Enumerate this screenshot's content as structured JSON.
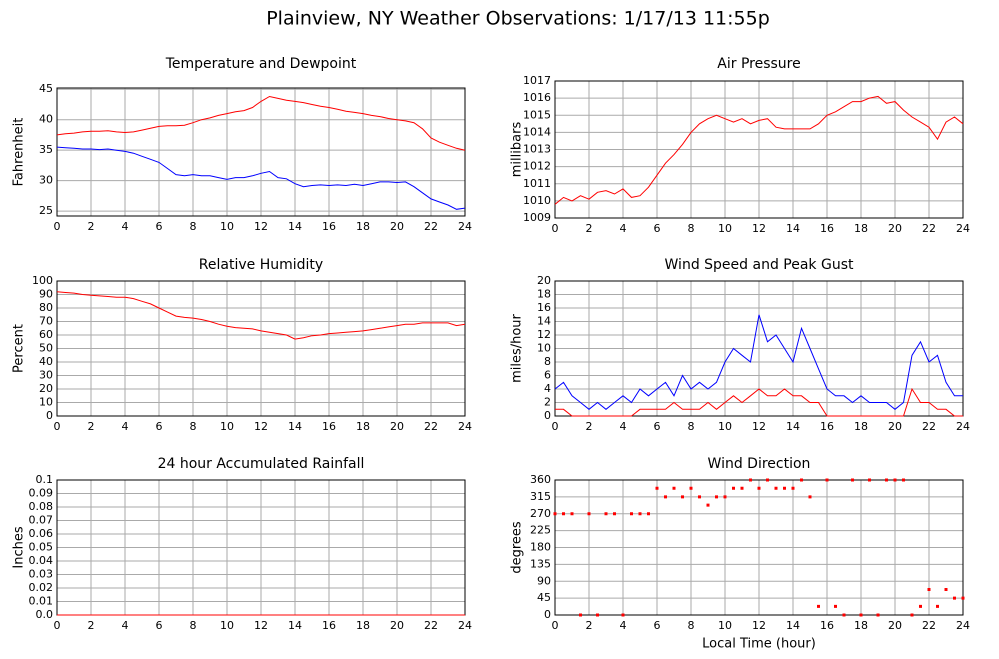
{
  "title": "Plainview, NY Weather Observations: 1/17/13 11:55p",
  "chart_data": [
    {
      "type": "line",
      "title": "Temperature and Dewpoint",
      "ylabel": "Fahrenheit",
      "grid": true,
      "xlim": [
        0,
        24
      ],
      "xticks": [
        0,
        2,
        4,
        6,
        8,
        10,
        12,
        14,
        16,
        18,
        20,
        22,
        24
      ],
      "ylim": [
        24.2,
        45.2
      ],
      "yticks": [
        25,
        30,
        35,
        40,
        45
      ],
      "x": [
        0,
        0.5,
        1,
        1.5,
        2,
        2.5,
        3,
        3.5,
        4,
        4.5,
        5,
        5.5,
        6,
        6.5,
        7,
        7.5,
        8,
        8.5,
        9,
        9.5,
        10,
        10.5,
        11,
        11.5,
        12,
        12.5,
        13,
        13.5,
        14,
        14.5,
        15,
        15.5,
        16,
        16.5,
        17,
        17.5,
        18,
        18.5,
        19,
        19.5,
        20,
        20.5,
        21,
        21.5,
        22,
        22.5,
        23,
        23.5,
        24
      ],
      "series": [
        {
          "color": "#ff0000",
          "values": [
            37.5,
            37.7,
            37.8,
            38,
            38.1,
            38.1,
            38.2,
            38,
            37.9,
            38,
            38.3,
            38.6,
            38.9,
            39,
            39,
            39.1,
            39.5,
            40,
            40.3,
            40.7,
            41,
            41.3,
            41.5,
            42,
            43,
            43.8,
            43.5,
            43.2,
            43,
            42.8,
            42.5,
            42.2,
            42,
            41.7,
            41.4,
            41.2,
            41,
            40.7,
            40.5,
            40.2,
            40,
            39.8,
            39.5,
            38.5,
            37,
            36.3,
            35.8,
            35.3,
            35
          ]
        },
        {
          "color": "#0000ff",
          "values": [
            35.5,
            35.4,
            35.3,
            35.2,
            35.2,
            35.1,
            35.2,
            35,
            34.8,
            34.5,
            34,
            33.5,
            33,
            32,
            31,
            30.8,
            31,
            30.8,
            30.8,
            30.5,
            30.2,
            30.5,
            30.5,
            30.8,
            31.2,
            31.5,
            30.5,
            30.3,
            29.5,
            29,
            29.2,
            29.3,
            29.2,
            29.3,
            29.2,
            29.4,
            29.2,
            29.5,
            29.8,
            29.8,
            29.7,
            29.8,
            29,
            28,
            27,
            26.5,
            26,
            25.3,
            25.5
          ]
        }
      ]
    },
    {
      "type": "line",
      "title": "Air Pressure",
      "ylabel": "millibars",
      "grid": true,
      "xlim": [
        0,
        24
      ],
      "xticks": [
        0,
        2,
        4,
        6,
        8,
        10,
        12,
        14,
        16,
        18,
        20,
        22,
        24
      ],
      "ylim": [
        1009,
        1017
      ],
      "yticks": [
        1009,
        1010,
        1011,
        1012,
        1013,
        1014,
        1015,
        1016,
        1017
      ],
      "x": [
        0,
        0.5,
        1,
        1.5,
        2,
        2.5,
        3,
        3.5,
        4,
        4.5,
        5,
        5.5,
        6,
        6.5,
        7,
        7.5,
        8,
        8.5,
        9,
        9.5,
        10,
        10.5,
        11,
        11.5,
        12,
        12.5,
        13,
        13.5,
        14,
        14.5,
        15,
        15.5,
        16,
        16.5,
        17,
        17.5,
        18,
        18.5,
        19,
        19.5,
        20,
        20.5,
        21,
        21.5,
        22,
        22.5,
        23,
        23.5,
        24
      ],
      "series": [
        {
          "color": "#ff0000",
          "values": [
            1009.8,
            1010.2,
            1010,
            1010.3,
            1010.1,
            1010.5,
            1010.6,
            1010.4,
            1010.7,
            1010.2,
            1010.3,
            1010.8,
            1011.5,
            1012.2,
            1012.7,
            1013.3,
            1014,
            1014.5,
            1014.8,
            1015,
            1014.8,
            1014.6,
            1014.8,
            1014.5,
            1014.7,
            1014.8,
            1014.3,
            1014.2,
            1014.2,
            1014.2,
            1014.2,
            1014.5,
            1015,
            1015.2,
            1015.5,
            1015.8,
            1015.8,
            1016,
            1016.1,
            1015.7,
            1015.8,
            1015.3,
            1014.9,
            1014.6,
            1014.3,
            1013.6,
            1014.6,
            1014.9,
            1014.5
          ]
        }
      ]
    },
    {
      "type": "line",
      "title": "Relative Humidity",
      "ylabel": "Percent",
      "grid": true,
      "xlim": [
        0,
        24
      ],
      "xticks": [
        0,
        2,
        4,
        6,
        8,
        10,
        12,
        14,
        16,
        18,
        20,
        22,
        24
      ],
      "ylim": [
        0,
        100
      ],
      "yticks": [
        0,
        10,
        20,
        30,
        40,
        50,
        60,
        70,
        80,
        90,
        100
      ],
      "x": [
        0,
        0.5,
        1,
        1.5,
        2,
        2.5,
        3,
        3.5,
        4,
        4.5,
        5,
        5.5,
        6,
        6.5,
        7,
        7.5,
        8,
        8.5,
        9,
        9.5,
        10,
        10.5,
        11,
        11.5,
        12,
        12.5,
        13,
        13.5,
        14,
        14.5,
        15,
        15.5,
        16,
        16.5,
        17,
        17.5,
        18,
        18.5,
        19,
        19.5,
        20,
        20.5,
        21,
        21.5,
        22,
        22.5,
        23,
        23.5,
        24
      ],
      "series": [
        {
          "color": "#ff0000",
          "values": [
            92,
            91.5,
            91,
            90,
            89.5,
            89,
            88.5,
            88,
            88,
            87,
            85,
            83,
            80,
            77,
            74,
            73,
            72.5,
            71.5,
            70,
            68,
            66.5,
            65.5,
            65,
            64.5,
            63,
            62,
            61,
            60,
            57,
            58,
            59.5,
            60,
            61,
            61.5,
            62,
            62.5,
            63,
            64,
            65,
            66,
            67,
            68,
            68,
            69,
            69,
            69,
            69,
            67,
            68
          ]
        }
      ]
    },
    {
      "type": "line",
      "title": "Wind Speed and Peak Gust",
      "ylabel": "miles/hour",
      "grid": true,
      "xlim": [
        0,
        24
      ],
      "xticks": [
        0,
        2,
        4,
        6,
        8,
        10,
        12,
        14,
        16,
        18,
        20,
        22,
        24
      ],
      "ylim": [
        0,
        20
      ],
      "yticks": [
        0,
        2,
        4,
        6,
        8,
        10,
        12,
        14,
        16,
        18,
        20
      ],
      "x": [
        0,
        0.5,
        1,
        1.5,
        2,
        2.5,
        3,
        3.5,
        4,
        4.5,
        5,
        5.5,
        6,
        6.5,
        7,
        7.5,
        8,
        8.5,
        9,
        9.5,
        10,
        10.5,
        11,
        11.5,
        12,
        12.5,
        13,
        13.5,
        14,
        14.5,
        15,
        15.5,
        16,
        16.5,
        17,
        17.5,
        18,
        18.5,
        19,
        19.5,
        20,
        20.5,
        21,
        21.5,
        22,
        22.5,
        23,
        23.5,
        24
      ],
      "series": [
        {
          "color": "#0000ff",
          "values": [
            4,
            5,
            3,
            2,
            1,
            2,
            1,
            2,
            3,
            2,
            4,
            3,
            4,
            5,
            3,
            6,
            4,
            5,
            4,
            5,
            8,
            10,
            9,
            8,
            15,
            11,
            12,
            10,
            8,
            13,
            10,
            7,
            4,
            3,
            3,
            2,
            3,
            2,
            2,
            2,
            1,
            2,
            9,
            11,
            8,
            9,
            5,
            3,
            3
          ]
        },
        {
          "color": "#ff0000",
          "values": [
            1,
            1,
            0,
            0,
            0,
            0,
            0,
            0,
            0,
            0,
            1,
            1,
            1,
            1,
            2,
            1,
            1,
            1,
            2,
            1,
            2,
            3,
            2,
            3,
            4,
            3,
            3,
            4,
            3,
            3,
            2,
            2,
            0,
            0,
            0,
            0,
            0,
            0,
            0,
            0,
            0,
            0,
            4,
            2,
            2,
            1,
            1,
            0,
            0
          ]
        }
      ]
    },
    {
      "type": "line",
      "title": "24 hour Accumulated Rainfall",
      "ylabel": "Inches",
      "grid": true,
      "xlim": [
        0,
        24
      ],
      "xticks": [
        0,
        2,
        4,
        6,
        8,
        10,
        12,
        14,
        16,
        18,
        20,
        22,
        24
      ],
      "ylim": [
        0,
        0.1
      ],
      "yticks": [
        {
          "value": 0,
          "label": "0.0"
        },
        0.01,
        0.02,
        0.03,
        0.04,
        0.05,
        0.06,
        0.07,
        0.08,
        0.09,
        0.1
      ],
      "x": [
        0,
        24
      ],
      "series": [
        {
          "color": "#ff0000",
          "values": [
            0,
            0
          ]
        }
      ]
    },
    {
      "type": "scatter",
      "title": "Wind Direction",
      "ylabel": "degrees",
      "xlabel": "Local Time (hour)",
      "grid": true,
      "xlim": [
        0,
        24
      ],
      "xticks": [
        0,
        2,
        4,
        6,
        8,
        10,
        12,
        14,
        16,
        18,
        20,
        22,
        24
      ],
      "ylim": [
        0,
        360
      ],
      "yticks": [
        0,
        45,
        90,
        135,
        180,
        225,
        270,
        315,
        360
      ],
      "x": [
        0,
        0.5,
        1,
        1.5,
        2,
        2.5,
        3,
        3.5,
        4,
        4.5,
        5,
        5.5,
        6,
        6.5,
        7,
        7.5,
        8,
        8.5,
        9,
        9.5,
        10,
        10.5,
        11,
        11.5,
        12,
        12.5,
        13,
        13.5,
        14,
        14.5,
        15,
        15.5,
        16,
        16.5,
        17,
        17.5,
        18,
        18.5,
        19,
        19.5,
        20,
        20.5,
        21,
        21.5,
        22,
        22.5,
        23,
        23.5,
        24
      ],
      "series": [
        {
          "color": "#ff0000",
          "values": [
            270,
            270,
            270,
            0,
            270,
            0,
            270,
            270,
            0,
            270,
            270,
            270,
            338,
            315,
            338,
            315,
            338,
            315,
            293,
            315,
            315,
            338,
            338,
            360,
            338,
            360,
            338,
            338,
            338,
            360,
            315,
            23,
            360,
            23,
            0,
            360,
            0,
            360,
            0,
            360,
            360,
            360,
            0,
            23,
            68,
            23,
            68,
            45,
            45
          ]
        }
      ]
    }
  ]
}
